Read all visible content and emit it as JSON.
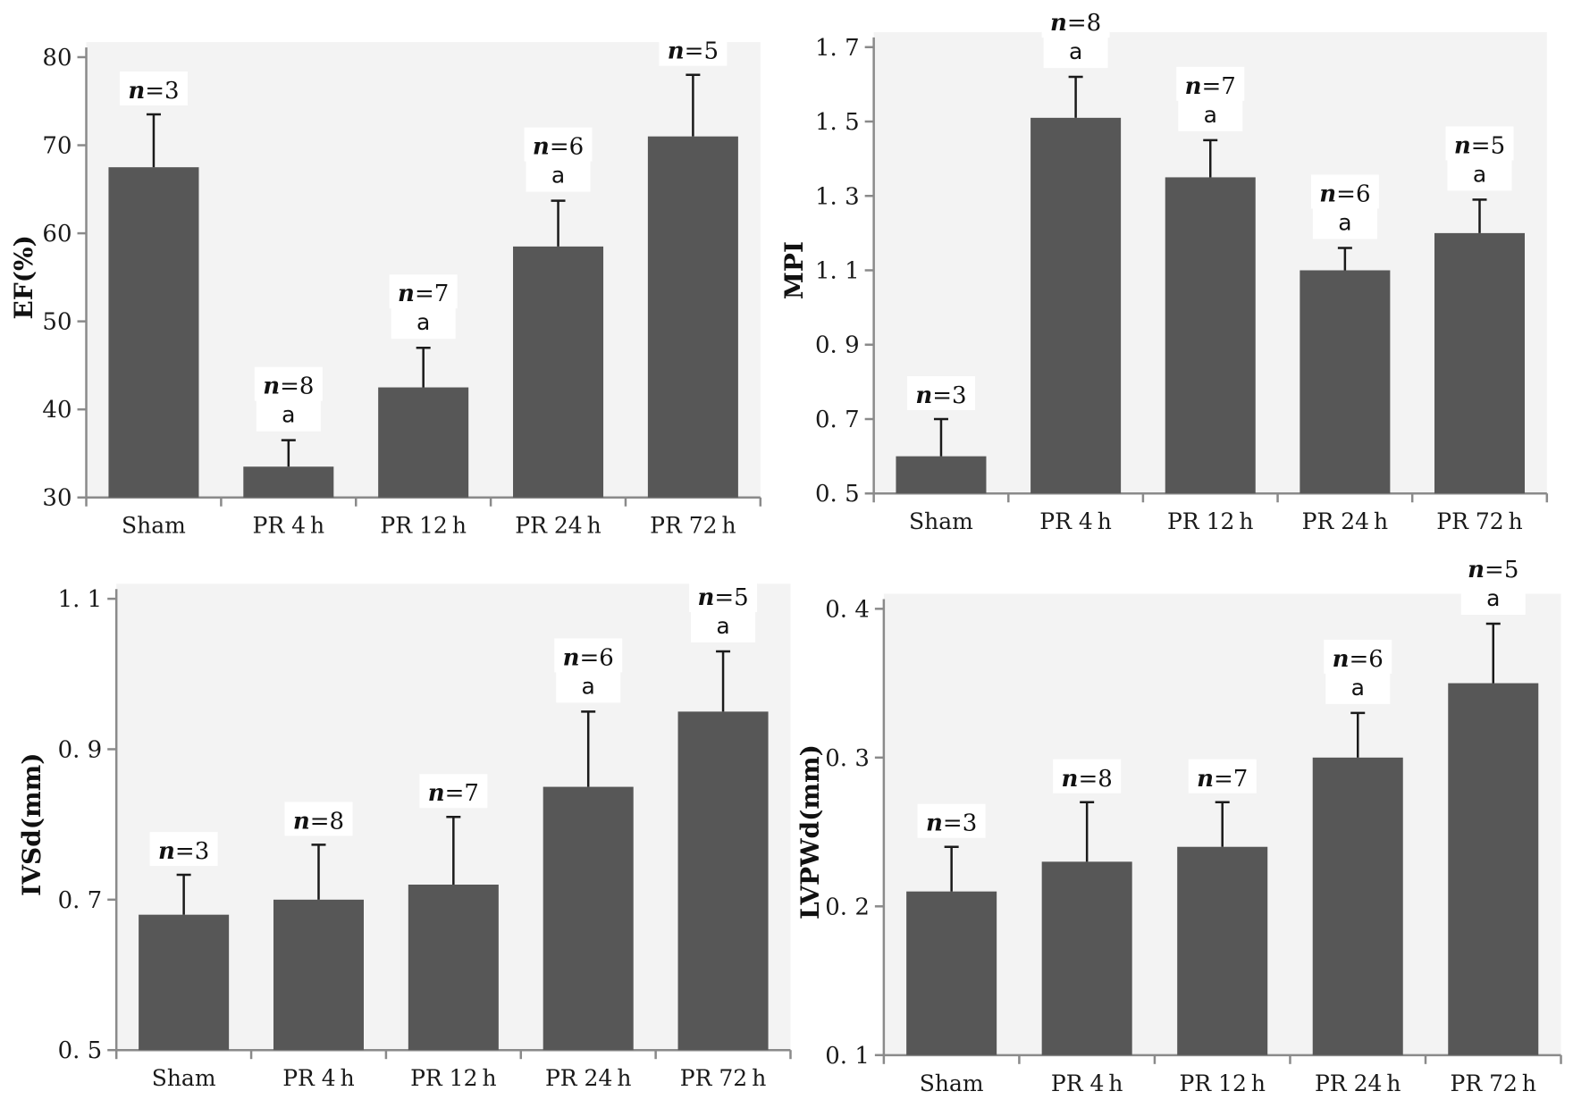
{
  "chart_data": [
    {
      "type": "bar",
      "panel": "top-left",
      "ylabel": "EF(%)",
      "xlabel": "",
      "categories": [
        "Sham",
        "PR 4 h",
        "PR 12 h",
        "PR 24 h",
        "PR 72 h"
      ],
      "values": [
        67.5,
        33.5,
        42.5,
        58.5,
        71.0
      ],
      "errors": [
        6.0,
        3.0,
        4.5,
        5.2,
        7.0
      ],
      "n_labels": [
        "=3",
        "=8",
        "=7",
        "=6",
        "=5"
      ],
      "sig_labels": [
        "",
        "a",
        "a",
        "a",
        ""
      ],
      "ylim": [
        30,
        80
      ],
      "yticks": [
        30,
        40,
        50,
        60,
        70,
        80
      ],
      "ytick_labels": [
        "30",
        "40",
        "50",
        "60",
        "70",
        "80"
      ]
    },
    {
      "type": "bar",
      "panel": "top-right",
      "ylabel": "MPI",
      "xlabel": "",
      "categories": [
        "Sham",
        "PR 4 h",
        "PR 12 h",
        "PR 24 h",
        "PR 72 h"
      ],
      "values": [
        0.6,
        1.51,
        1.35,
        1.1,
        1.2
      ],
      "errors": [
        0.1,
        0.11,
        0.1,
        0.06,
        0.09
      ],
      "n_labels": [
        "=3",
        "=8",
        "=7",
        "=6",
        "=5"
      ],
      "sig_labels": [
        "",
        "a",
        "a",
        "a",
        "a"
      ],
      "ylim": [
        0.5,
        1.7
      ],
      "yticks": [
        0.5,
        0.7,
        0.9,
        1.1,
        1.3,
        1.5,
        1.7
      ],
      "ytick_labels": [
        "0. 5",
        "0. 7",
        "0. 9",
        "1. 1",
        "1. 3",
        "1. 5",
        "1. 7"
      ]
    },
    {
      "type": "bar",
      "panel": "bottom-left",
      "ylabel": "IVSd(mm)",
      "xlabel": "",
      "categories": [
        "Sham",
        "PR 4 h",
        "PR 12 h",
        "PR 24 h",
        "PR 72 h"
      ],
      "values": [
        0.68,
        0.7,
        0.72,
        0.85,
        0.95
      ],
      "errors": [
        0.053,
        0.073,
        0.09,
        0.1,
        0.08
      ],
      "n_labels": [
        "=3",
        "=8",
        "=7",
        "=6",
        "=5"
      ],
      "sig_labels": [
        "",
        "",
        "",
        "a",
        "a"
      ],
      "ylim": [
        0.5,
        1.1
      ],
      "yticks": [
        0.5,
        0.7,
        0.9,
        1.1
      ],
      "ytick_labels": [
        "0. 5",
        "0. 7",
        "0. 9",
        "1. 1"
      ]
    },
    {
      "type": "bar",
      "panel": "bottom-right",
      "ylabel": "LVPWd(mm)",
      "xlabel": "",
      "categories": [
        "Sham",
        "PR 4 h",
        "PR 12 h",
        "PR 24 h",
        "PR 72 h"
      ],
      "values": [
        0.21,
        0.23,
        0.24,
        0.3,
        0.35
      ],
      "errors": [
        0.03,
        0.04,
        0.03,
        0.03,
        0.04
      ],
      "n_labels": [
        "=3",
        "=8",
        "=7",
        "=6",
        "=5"
      ],
      "sig_labels": [
        "",
        "",
        "",
        "a",
        "a"
      ],
      "ylim": [
        0.1,
        0.4
      ],
      "yticks": [
        0.1,
        0.2,
        0.3,
        0.4
      ],
      "ytick_labels": [
        "0. 1",
        "0. 2",
        "0. 3",
        "0. 4"
      ]
    }
  ],
  "n_prefix": "n",
  "colors": {
    "bar": "#575757",
    "plot_bg": "#f3f3f3",
    "axis": "#8a8a8a",
    "error": "#1a1a1a"
  }
}
